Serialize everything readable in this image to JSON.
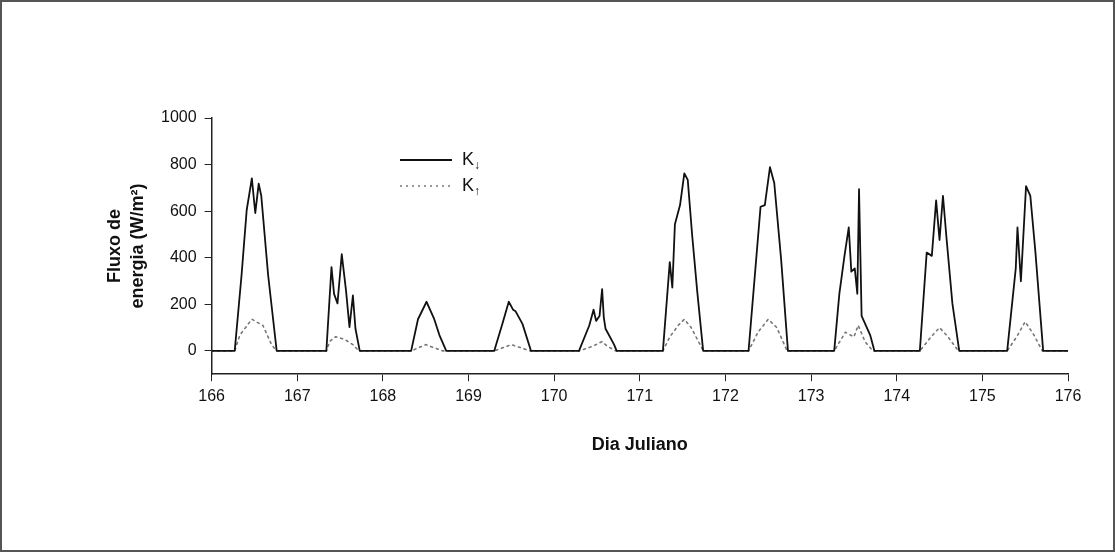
{
  "chart_data": {
    "type": "line",
    "xlabel": "Dia Juliano",
    "ylabel": "Fluxo de energia (W/m²)",
    "xlim": [
      166,
      176
    ],
    "xticks": [
      166,
      167,
      168,
      169,
      170,
      171,
      172,
      173,
      174,
      175,
      176
    ],
    "ylim": [
      -100,
      1000
    ],
    "yticks": [
      0,
      200,
      400,
      600,
      800,
      1000
    ],
    "grid": false,
    "legend": "top left",
    "marker": "none",
    "series": [
      {
        "name": "K$_{↓}$",
        "color": "#111111",
        "line_style": "solid",
        "x": [
          166,
          166.27,
          166.35,
          166.41,
          166.47,
          166.51,
          166.55,
          166.58,
          166.66,
          166.76,
          167.34,
          167.4,
          167.43,
          167.47,
          167.52,
          167.57,
          167.61,
          167.65,
          167.68,
          167.73,
          168.33,
          168.41,
          168.51,
          168.6,
          168.66,
          168.74,
          169.3,
          169.4,
          169.47,
          169.52,
          169.55,
          169.63,
          169.73,
          170.29,
          170.41,
          170.46,
          170.49,
          170.53,
          170.56,
          170.58,
          170.6,
          170.7,
          170.73,
          171.27,
          171.35,
          171.38,
          171.41,
          171.47,
          171.52,
          171.56,
          171.61,
          171.67,
          171.74,
          172.27,
          172.41,
          172.46,
          172.52,
          172.57,
          172.65,
          172.73,
          173.27,
          173.33,
          173.39,
          173.44,
          173.47,
          173.51,
          173.54,
          173.56,
          173.59,
          173.69,
          173.74,
          174.27,
          174.35,
          174.41,
          174.46,
          174.5,
          174.54,
          174.58,
          174.65,
          174.73,
          175.29,
          175.39,
          175.41,
          175.45,
          175.51,
          175.56,
          175.62,
          175.71,
          176
        ],
        "values": [
          0,
          0,
          326,
          605,
          741,
          592,
          718,
          666,
          326,
          0,
          0,
          360,
          245,
          204,
          415,
          258,
          102,
          238,
          95,
          0,
          0,
          136,
          211,
          136,
          68,
          0,
          0,
          122,
          211,
          177,
          170,
          116,
          0,
          0,
          109,
          177,
          129,
          150,
          265,
          143,
          95,
          27,
          0,
          0,
          381,
          272,
          544,
          626,
          762,
          734,
          503,
          258,
          0,
          0,
          619,
          626,
          789,
          721,
          394,
          0,
          0,
          245,
          408,
          530,
          340,
          354,
          245,
          694,
          150,
          68,
          0,
          0,
          422,
          408,
          646,
          476,
          666,
          490,
          204,
          0,
          0,
          354,
          530,
          299,
          707,
          666,
          422,
          0,
          0
        ]
      },
      {
        "name": "K$_{↑}$",
        "color": "#777777",
        "line_style": "dotted",
        "x": [
          166,
          166.27,
          166.33,
          166.47,
          166.6,
          166.7,
          166.76,
          167.34,
          167.38,
          167.45,
          167.55,
          167.65,
          167.72,
          168.33,
          168.5,
          168.7,
          169.3,
          169.5,
          169.72,
          170.29,
          170.45,
          170.56,
          170.62,
          170.72,
          171.27,
          171.35,
          171.45,
          171.52,
          171.6,
          171.7,
          171.74,
          172.27,
          172.38,
          172.5,
          172.6,
          172.72,
          173.27,
          173.4,
          173.5,
          173.55,
          173.63,
          173.72,
          174.27,
          174.4,
          174.5,
          174.6,
          174.72,
          175.29,
          175.4,
          175.5,
          175.6,
          175.7,
          176
        ],
        "values": [
          0,
          0,
          68,
          136,
          109,
          27,
          0,
          0,
          41,
          61,
          50,
          27,
          0,
          0,
          27,
          0,
          0,
          27,
          0,
          0,
          20,
          40,
          20,
          0,
          0,
          60,
          110,
          136,
          100,
          30,
          0,
          0,
          80,
          136,
          100,
          0,
          0,
          80,
          60,
          110,
          40,
          0,
          0,
          60,
          100,
          60,
          0,
          0,
          60,
          125,
          70,
          0,
          0
        ]
      }
    ]
  }
}
